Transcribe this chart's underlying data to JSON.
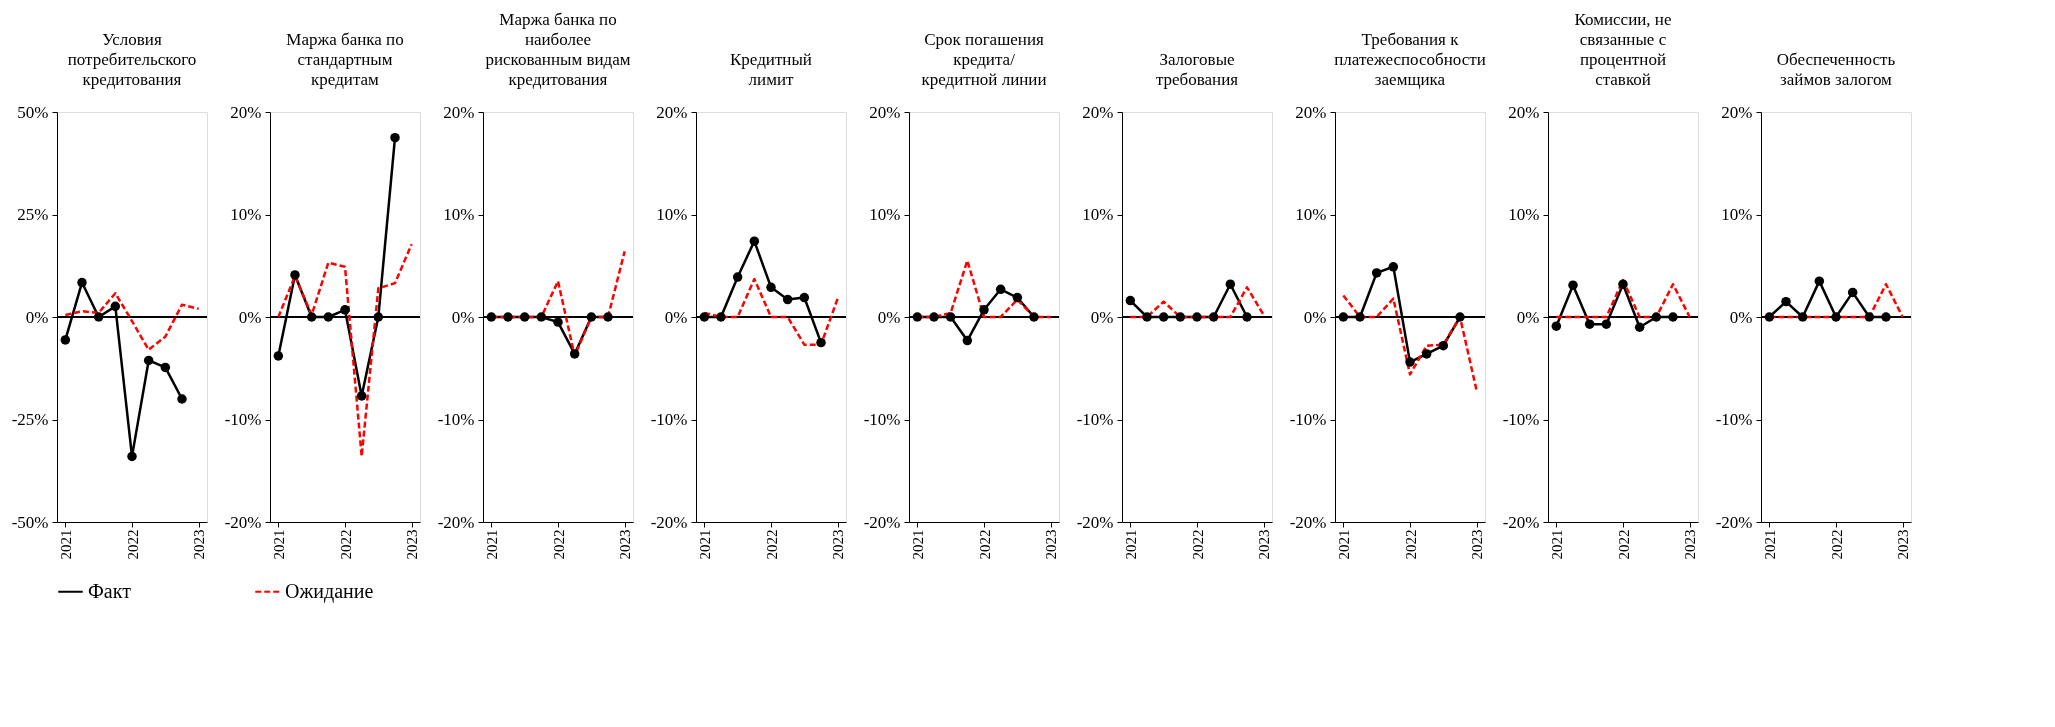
{
  "chart_data": [
    {
      "type": "line",
      "title": "Условия\nпотребительского\nкредитования",
      "x": [
        2021,
        2021.25,
        2021.5,
        2021.75,
        2022,
        2022.25,
        2022.5,
        2022.75,
        2023
      ],
      "xlim": [
        2020.875,
        2023.125
      ],
      "xticks": [
        2021,
        2022,
        2023
      ],
      "ylim": [
        -50,
        50
      ],
      "yticks": [
        {
          "value": -50,
          "label": "-50%"
        },
        {
          "value": -25,
          "label": "-25%"
        },
        {
          "value": 0,
          "label": "0%"
        },
        {
          "value": 25,
          "label": "25%"
        },
        {
          "value": 50,
          "label": "50%"
        }
      ],
      "ref_lines": [
        {
          "axis": "y",
          "value": 0,
          "color": "#000000"
        }
      ],
      "legend": "bottom",
      "series": [
        {
          "name": "Факт",
          "color": "#000000",
          "marker": "circle",
          "line_style": "solid",
          "values": [
            -5.6,
            8.4,
            0,
            2.6,
            -34,
            -10.6,
            -12.3,
            -20,
            null
          ]
        },
        {
          "name": "Ожидание",
          "color": "#ff0000",
          "marker": "none",
          "line_style": "dashed",
          "values": [
            0.5,
            1.4,
            1,
            5.8,
            -1,
            -8,
            -4.8,
            3,
            2
          ]
        }
      ]
    },
    {
      "type": "line",
      "title": "Маржа банка по\nстандартным\nкредитам",
      "x": [
        2021,
        2021.25,
        2021.5,
        2021.75,
        2022,
        2022.25,
        2022.5,
        2022.75,
        2023
      ],
      "xlim": [
        2020.875,
        2023.125
      ],
      "xticks": [
        2021,
        2022,
        2023
      ],
      "ylim": [
        -20,
        20
      ],
      "yticks": [
        {
          "value": -20,
          "label": "-20%"
        },
        {
          "value": -10,
          "label": "-10%"
        },
        {
          "value": 0,
          "label": "0%"
        },
        {
          "value": 10,
          "label": "10%"
        },
        {
          "value": 20,
          "label": "20%"
        }
      ],
      "ref_lines": [
        {
          "axis": "y",
          "value": 0,
          "color": "#000000"
        }
      ],
      "series": [
        {
          "name": "Факт",
          "color": "#000000",
          "marker": "circle",
          "line_style": "solid",
          "values": [
            -3.8,
            4.1,
            0,
            0,
            0.7,
            -7.7,
            0,
            17.5,
            null
          ]
        },
        {
          "name": "Ожидание",
          "color": "#ff0000",
          "marker": "none",
          "line_style": "dashed",
          "values": [
            0,
            4,
            0.2,
            5.3,
            4.9,
            -13.6,
            2.8,
            3.3,
            7.1
          ]
        }
      ]
    },
    {
      "type": "line",
      "title": "Маржа банка по\nнаиболее\nрискованным видам\nкредитования",
      "x": [
        2021,
        2021.25,
        2021.5,
        2021.75,
        2022,
        2022.25,
        2022.5,
        2022.75,
        2023
      ],
      "xlim": [
        2020.875,
        2023.125
      ],
      "xticks": [
        2021,
        2022,
        2023
      ],
      "ylim": [
        -20,
        20
      ],
      "yticks": [
        {
          "value": -20,
          "label": "-20%"
        },
        {
          "value": -10,
          "label": "-10%"
        },
        {
          "value": 0,
          "label": "0%"
        },
        {
          "value": 10,
          "label": "10%"
        },
        {
          "value": 20,
          "label": "20%"
        }
      ],
      "ref_lines": [
        {
          "axis": "y",
          "value": 0,
          "color": "#000000"
        }
      ],
      "series": [
        {
          "name": "Факт",
          "color": "#000000",
          "marker": "circle",
          "line_style": "solid",
          "values": [
            0,
            0,
            0,
            0,
            -0.5,
            -3.6,
            0,
            0,
            null
          ]
        },
        {
          "name": "Ожидание",
          "color": "#ff0000",
          "marker": "none",
          "line_style": "dashed",
          "values": [
            0,
            0,
            0,
            0,
            3.5,
            -3.8,
            0,
            0,
            6.4
          ]
        }
      ]
    },
    {
      "type": "line",
      "title": "Кредитный\nлимит",
      "x": [
        2021,
        2021.25,
        2021.5,
        2021.75,
        2022,
        2022.25,
        2022.5,
        2022.75,
        2023
      ],
      "xlim": [
        2020.875,
        2023.125
      ],
      "xticks": [
        2021,
        2022,
        2023
      ],
      "ylim": [
        -20,
        20
      ],
      "yticks": [
        {
          "value": -20,
          "label": "-20%"
        },
        {
          "value": -10,
          "label": "-10%"
        },
        {
          "value": 0,
          "label": "0%"
        },
        {
          "value": 10,
          "label": "10%"
        },
        {
          "value": 20,
          "label": "20%"
        }
      ],
      "ref_lines": [
        {
          "axis": "y",
          "value": 0,
          "color": "#000000"
        }
      ],
      "series": [
        {
          "name": "Факт",
          "color": "#000000",
          "marker": "circle",
          "line_style": "solid",
          "values": [
            0,
            0,
            3.9,
            7.4,
            2.9,
            1.7,
            1.9,
            -2.5,
            null
          ]
        },
        {
          "name": "Ожидание",
          "color": "#ff0000",
          "marker": "none",
          "line_style": "dashed",
          "values": [
            0.4,
            0,
            0,
            3.7,
            0,
            0,
            -2.7,
            -2.7,
            1.8
          ]
        }
      ]
    },
    {
      "type": "line",
      "title": "Срок погашения\nкредита/\nкредитной линии",
      "x": [
        2021,
        2021.25,
        2021.5,
        2021.75,
        2022,
        2022.25,
        2022.5,
        2022.75,
        2023
      ],
      "xlim": [
        2020.875,
        2023.125
      ],
      "xticks": [
        2021,
        2022,
        2023
      ],
      "ylim": [
        -20,
        20
      ],
      "yticks": [
        {
          "value": -20,
          "label": "-20%"
        },
        {
          "value": -10,
          "label": "-10%"
        },
        {
          "value": 0,
          "label": "0%"
        },
        {
          "value": 10,
          "label": "10%"
        },
        {
          "value": 20,
          "label": "20%"
        }
      ],
      "ref_lines": [
        {
          "axis": "y",
          "value": 0,
          "color": "#000000"
        }
      ],
      "series": [
        {
          "name": "Факт",
          "color": "#000000",
          "marker": "circle",
          "line_style": "solid",
          "values": [
            0,
            0,
            0,
            -2.3,
            0.7,
            2.7,
            1.9,
            0,
            null
          ]
        },
        {
          "name": "Ожидание",
          "color": "#ff0000",
          "marker": "none",
          "line_style": "dashed",
          "values": [
            0,
            0,
            0.4,
            5.5,
            0,
            0,
            1.7,
            0,
            0
          ]
        }
      ]
    },
    {
      "type": "line",
      "title": "Залоговые\nтребования",
      "x": [
        2021,
        2021.25,
        2021.5,
        2021.75,
        2022,
        2022.25,
        2022.5,
        2022.75,
        2023
      ],
      "xlim": [
        2020.875,
        2023.125
      ],
      "xticks": [
        2021,
        2022,
        2023
      ],
      "ylim": [
        -20,
        20
      ],
      "yticks": [
        {
          "value": -20,
          "label": "-20%"
        },
        {
          "value": -10,
          "label": "-10%"
        },
        {
          "value": 0,
          "label": "0%"
        },
        {
          "value": 10,
          "label": "10%"
        },
        {
          "value": 20,
          "label": "20%"
        }
      ],
      "ref_lines": [
        {
          "axis": "y",
          "value": 0,
          "color": "#000000"
        }
      ],
      "series": [
        {
          "name": "Факт",
          "color": "#000000",
          "marker": "circle",
          "line_style": "solid",
          "values": [
            1.6,
            0,
            0,
            0,
            0,
            0,
            3.2,
            0,
            null
          ]
        },
        {
          "name": "Ожидание",
          "color": "#ff0000",
          "marker": "none",
          "line_style": "dashed",
          "values": [
            0,
            0,
            1.5,
            0,
            0,
            0,
            0,
            2.9,
            0.2
          ]
        }
      ]
    },
    {
      "type": "line",
      "title": "Требования к\nплатежеспособности\nзаемщика",
      "x": [
        2021,
        2021.25,
        2021.5,
        2021.75,
        2022,
        2022.25,
        2022.5,
        2022.75,
        2023
      ],
      "xlim": [
        2020.875,
        2023.125
      ],
      "xticks": [
        2021,
        2022,
        2023
      ],
      "ylim": [
        -20,
        20
      ],
      "yticks": [
        {
          "value": -20,
          "label": "-20%"
        },
        {
          "value": -10,
          "label": "-10%"
        },
        {
          "value": 0,
          "label": "0%"
        },
        {
          "value": 10,
          "label": "10%"
        },
        {
          "value": 20,
          "label": "20%"
        }
      ],
      "ref_lines": [
        {
          "axis": "y",
          "value": 0,
          "color": "#000000"
        }
      ],
      "series": [
        {
          "name": "Факт",
          "color": "#000000",
          "marker": "circle",
          "line_style": "solid",
          "values": [
            0,
            0,
            4.3,
            4.9,
            -4.4,
            -3.6,
            -2.8,
            0,
            null
          ]
        },
        {
          "name": "Ожидание",
          "color": "#ff0000",
          "marker": "none",
          "line_style": "dashed",
          "values": [
            2.1,
            0,
            0,
            1.8,
            -5.6,
            -2.8,
            -2.7,
            0,
            -7.2
          ]
        }
      ]
    },
    {
      "type": "line",
      "title": "Комиссии, не\nсвязанные с\nпроцентной\nставкой",
      "x": [
        2021,
        2021.25,
        2021.5,
        2021.75,
        2022,
        2022.25,
        2022.5,
        2022.75,
        2023
      ],
      "xlim": [
        2020.875,
        2023.125
      ],
      "xticks": [
        2021,
        2022,
        2023
      ],
      "ylim": [
        -20,
        20
      ],
      "yticks": [
        {
          "value": -20,
          "label": "-20%"
        },
        {
          "value": -10,
          "label": "-10%"
        },
        {
          "value": 0,
          "label": "0%"
        },
        {
          "value": 10,
          "label": "10%"
        },
        {
          "value": 20,
          "label": "20%"
        }
      ],
      "ref_lines": [
        {
          "axis": "y",
          "value": 0,
          "color": "#000000"
        }
      ],
      "series": [
        {
          "name": "Факт",
          "color": "#000000",
          "marker": "circle",
          "line_style": "solid",
          "values": [
            -0.9,
            3.1,
            -0.7,
            -0.7,
            3.2,
            -1,
            0,
            0,
            null
          ]
        },
        {
          "name": "Ожидание",
          "color": "#ff0000",
          "marker": "none",
          "line_style": "dashed",
          "values": [
            0,
            0,
            0,
            0,
            3.6,
            0,
            0,
            3.2,
            0
          ]
        }
      ]
    },
    {
      "type": "line",
      "title": "Обеспеченность\nзаймов залогом",
      "x": [
        2021,
        2021.25,
        2021.5,
        2021.75,
        2022,
        2022.25,
        2022.5,
        2022.75,
        2023
      ],
      "xlim": [
        2020.875,
        2023.125
      ],
      "xticks": [
        2021,
        2022,
        2023
      ],
      "ylim": [
        -20,
        20
      ],
      "yticks": [
        {
          "value": -20,
          "label": "-20%"
        },
        {
          "value": -10,
          "label": "-10%"
        },
        {
          "value": 0,
          "label": "0%"
        },
        {
          "value": 10,
          "label": "10%"
        },
        {
          "value": 20,
          "label": "20%"
        }
      ],
      "ref_lines": [
        {
          "axis": "y",
          "value": 0,
          "color": "#000000"
        }
      ],
      "series": [
        {
          "name": "Факт",
          "color": "#000000",
          "marker": "circle",
          "line_style": "solid",
          "values": [
            0,
            1.5,
            0,
            3.5,
            0,
            2.4,
            0,
            0,
            null
          ]
        },
        {
          "name": "Ожидание",
          "color": "#ff0000",
          "marker": "none",
          "line_style": "dashed",
          "values": [
            0,
            0,
            0,
            0,
            0,
            0,
            0,
            3.2,
            0
          ]
        }
      ]
    }
  ]
}
